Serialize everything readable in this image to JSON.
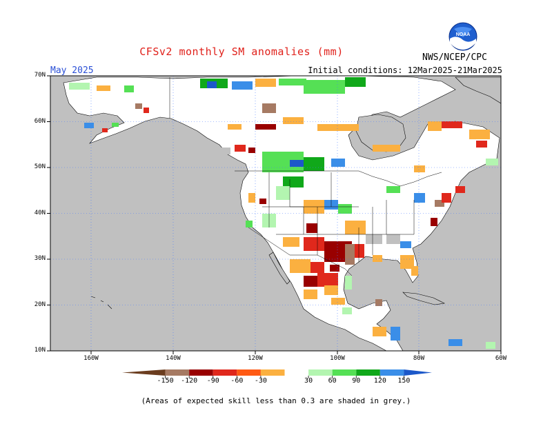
{
  "title": "CFSv2 monthly SM anomalies (mm)",
  "month_label": "May 2025",
  "initial_conditions": "Initial conditions: 12Mar2025-21Mar2025",
  "agency": "NWS/NCEP/CPC",
  "logo": {
    "text": "NOAA",
    "icon": "noaa-logo"
  },
  "footer": "(Areas of expected skill less than 0.3 are shaded in grey.)",
  "axes": {
    "lat_labels": [
      "70N",
      "60N",
      "50N",
      "40N",
      "30N",
      "20N",
      "10N"
    ],
    "lon_labels": [
      "160W",
      "140W",
      "120W",
      "100W",
      "80W",
      "60W"
    ],
    "lon_range": [
      -170,
      -60
    ],
    "lat_range": [
      10,
      70
    ]
  },
  "colorbar": {
    "labels": [
      "-150",
      "-120",
      "-90",
      "-60",
      "-30",
      "30",
      "60",
      "90",
      "120",
      "150"
    ],
    "colors": [
      "#6b3d1f",
      "#a67a63",
      "#990000",
      "#e0281c",
      "#ff5a14",
      "#fbb040",
      "#ffffff",
      "#b3f5b0",
      "#55e055",
      "#10a81a",
      "#3a8ee8",
      "#1c58c9"
    ]
  },
  "colors": {
    "ocean": "#c0c0c0",
    "grid": "#4477ff",
    "coast": "#000000"
  }
}
